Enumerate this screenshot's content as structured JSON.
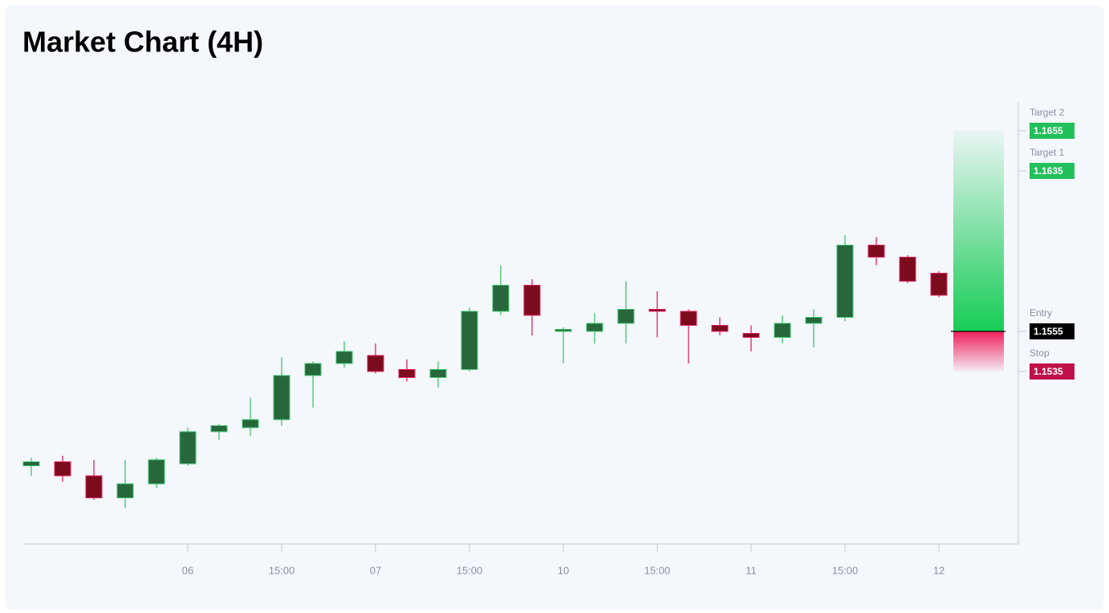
{
  "chart_data": {
    "type": "candlestick",
    "title": "Market Chart (4H)",
    "categories": [
      null,
      null,
      null,
      null,
      null,
      "06",
      null,
      null,
      "15:00",
      null,
      null,
      "07",
      null,
      null,
      "15:00",
      null,
      null,
      "10",
      null,
      null,
      "15:00",
      null,
      null,
      "11",
      null,
      null,
      "15:00",
      null,
      null,
      "12"
    ],
    "open": [
      1.1488,
      1.149,
      1.1483,
      1.1472,
      1.1479,
      1.1489,
      1.1505,
      1.1507,
      1.1511,
      1.1533,
      1.1539,
      1.1543,
      1.1536,
      1.1532,
      1.1536,
      1.1565,
      1.1578,
      1.1555,
      1.1555,
      1.1559,
      1.1566,
      1.1565,
      1.1558,
      1.1554,
      1.1552,
      1.1559,
      1.1562,
      1.1598,
      1.1592,
      1.1584
    ],
    "high": [
      1.1492,
      1.1493,
      1.1491,
      1.1491,
      1.1492,
      1.1507,
      1.1509,
      1.1522,
      1.1542,
      1.154,
      1.155,
      1.1549,
      1.1541,
      1.154,
      1.1567,
      1.1588,
      1.1581,
      1.1557,
      1.1564,
      1.158,
      1.1575,
      1.1566,
      1.1562,
      1.1558,
      1.1563,
      1.1566,
      1.1603,
      1.1602,
      1.1593,
      1.1585
    ],
    "low": [
      1.1483,
      1.148,
      1.1471,
      1.1467,
      1.1477,
      1.1488,
      1.1501,
      1.1503,
      1.1508,
      1.1517,
      1.1537,
      1.1534,
      1.153,
      1.1527,
      1.1535,
      1.1563,
      1.1553,
      1.1539,
      1.1549,
      1.1549,
      1.1552,
      1.1539,
      1.1553,
      1.1545,
      1.1549,
      1.1547,
      1.156,
      1.1588,
      1.1579,
      1.1572
    ],
    "close": [
      1.149,
      1.1483,
      1.1472,
      1.1479,
      1.1491,
      1.1505,
      1.1508,
      1.1511,
      1.1533,
      1.1539,
      1.1545,
      1.1535,
      1.1532,
      1.1536,
      1.1565,
      1.1578,
      1.1563,
      1.1556,
      1.1559,
      1.1566,
      1.1565,
      1.1558,
      1.1555,
      1.1552,
      1.1559,
      1.1562,
      1.1598,
      1.1592,
      1.158,
      1.1573
    ],
    "up_color": "#27673b",
    "up_edge": "#3fc46e",
    "down_color": "#7b0b1d",
    "down_edge": "#e0245e",
    "ylim": [
      1.1449,
      1.1669
    ],
    "levels": [
      {
        "label": "Target 2",
        "value": 1.1655,
        "color": "#22c05a"
      },
      {
        "label": "Target 1",
        "value": 1.1635,
        "color": "#22c05a"
      },
      {
        "label": "Entry",
        "value": 1.1555,
        "color": "#000000"
      },
      {
        "label": "Stop",
        "value": 1.1535,
        "color": "#c0104a"
      }
    ]
  }
}
